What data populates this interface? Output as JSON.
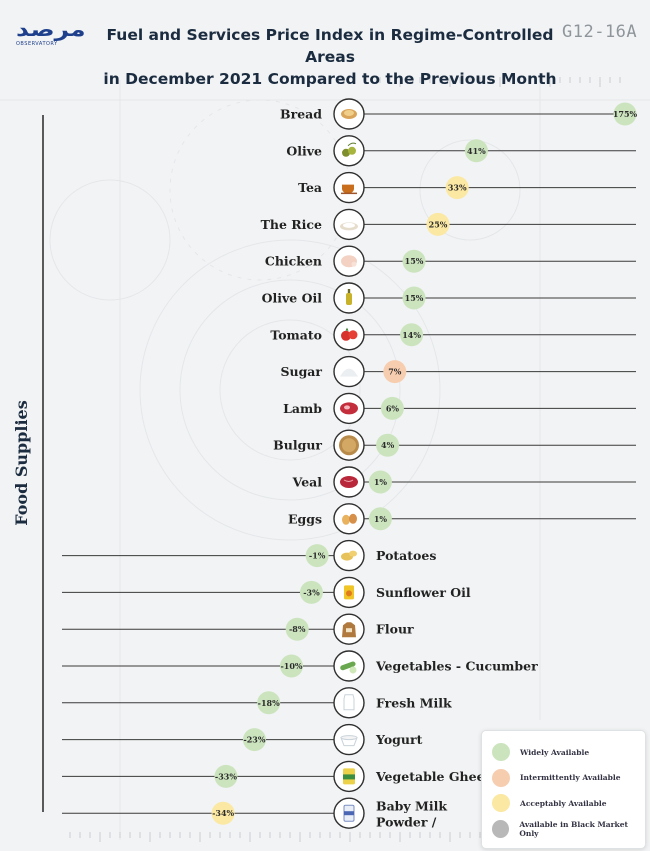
{
  "header": {
    "logo_text": "مرصد",
    "logo_sub": "OBSERVATORY",
    "title_line1": "Fuel and Services Price Index in Regime-Controlled Areas",
    "title_line2": "in December 2021 Compared to the Previous Month",
    "code": "G12-16A"
  },
  "legend": {
    "items": [
      {
        "label": "Widely Available",
        "color": "#cbe4be"
      },
      {
        "label": "Intermittently Available",
        "color": "#f7cdb0"
      },
      {
        "label": "Acceptably Available",
        "color": "#fbe8a2"
      },
      {
        "label": "Available in Black Market Only",
        "color": "#b8b8b8"
      }
    ]
  },
  "chart_data": {
    "type": "bar",
    "orientation": "horizontal-lollipop",
    "title": "Fuel and Services Price Index in Regime-Controlled Areas in December 2021 Compared to the Previous Month",
    "category_axis_label": "Food Supplies",
    "unit": "%",
    "colors": {
      "widely": "#cbe4be",
      "intermittently": "#f7cdb0",
      "acceptably": "#fbe8a2",
      "black_market": "#b8b8b8"
    },
    "items": [
      {
        "name": "Bread",
        "value": 175,
        "label": "175%",
        "availability": "widely",
        "icon": "bread-icon"
      },
      {
        "name": "Olive",
        "value": 41,
        "label": "41%",
        "availability": "widely",
        "icon": "olive-icon"
      },
      {
        "name": "Tea",
        "value": 33,
        "label": "33%",
        "availability": "acceptably",
        "icon": "tea-icon"
      },
      {
        "name": "The Rice",
        "value": 25,
        "label": "25%",
        "availability": "acceptably",
        "icon": "rice-icon"
      },
      {
        "name": "Chicken",
        "value": 15,
        "label": "15%",
        "availability": "widely",
        "icon": "chicken-icon"
      },
      {
        "name": "Olive Oil",
        "value": 15,
        "label": "15%",
        "availability": "widely",
        "icon": "olive-oil-icon"
      },
      {
        "name": "Tomato",
        "value": 14,
        "label": "14%",
        "availability": "widely",
        "icon": "tomato-icon"
      },
      {
        "name": "Sugar",
        "value": 7,
        "label": "7%",
        "availability": "intermittently",
        "icon": "sugar-icon"
      },
      {
        "name": "Lamb",
        "value": 6,
        "label": "6%",
        "availability": "widely",
        "icon": "lamb-icon"
      },
      {
        "name": "Bulgur",
        "value": 4,
        "label": "4%",
        "availability": "widely",
        "icon": "bulgur-icon"
      },
      {
        "name": "Veal",
        "value": 1,
        "label": "1%",
        "availability": "widely",
        "icon": "veal-icon"
      },
      {
        "name": "Eggs",
        "value": 1,
        "label": "1%",
        "availability": "widely",
        "icon": "eggs-icon"
      },
      {
        "name": "Potatoes",
        "value": -1,
        "label": "-1%",
        "availability": "widely",
        "icon": "potatoes-icon"
      },
      {
        "name": "Sunflower Oil",
        "value": -3,
        "label": "-3%",
        "availability": "widely",
        "icon": "sunflower-oil-icon"
      },
      {
        "name": "Flour",
        "value": -8,
        "label": "-8%",
        "availability": "widely",
        "icon": "flour-icon"
      },
      {
        "name": "Vegetables - Cucumber",
        "value": -10,
        "label": "-10%",
        "availability": "widely",
        "icon": "cucumber-icon"
      },
      {
        "name": "Fresh Milk",
        "value": -18,
        "label": "-18%",
        "availability": "widely",
        "icon": "milk-icon"
      },
      {
        "name": "Yogurt",
        "value": -23,
        "label": "-23%",
        "availability": "widely",
        "icon": "yogurt-icon"
      },
      {
        "name": "Vegetable Ghee",
        "value": -33,
        "label": "-33%",
        "availability": "widely",
        "icon": "ghee-icon"
      },
      {
        "name": "Baby Milk Powder /",
        "value": -34,
        "label": "-34%",
        "availability": "acceptably",
        "icon": "baby-milk-icon"
      }
    ]
  }
}
